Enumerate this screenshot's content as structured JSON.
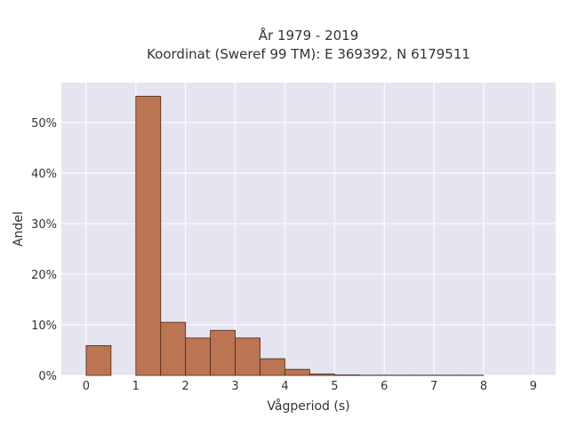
{
  "chart_data": {
    "type": "bar",
    "title_line1": "År 1979 - 2019",
    "title_line2": "Koordinat (Sweref 99 TM): E 369392, N 6179511",
    "xlabel": "Vågperiod (s)",
    "ylabel": "Andel",
    "x_range": [
      -0.5,
      9.45
    ],
    "y_range": [
      0,
      57.9
    ],
    "x_ticks": [
      0,
      1,
      2,
      3,
      4,
      5,
      6,
      7,
      8,
      9
    ],
    "x_tick_labels": [
      "0",
      "1",
      "2",
      "3",
      "4",
      "5",
      "6",
      "7",
      "8",
      "9"
    ],
    "y_ticks": [
      0,
      10,
      20,
      30,
      40,
      50
    ],
    "y_tick_labels": [
      "0%",
      "10%",
      "20%",
      "30%",
      "40%",
      "50%"
    ],
    "bin_width": 0.5,
    "bins": [
      {
        "x0": 0.0,
        "value": 5.9
      },
      {
        "x0": 1.0,
        "value": 55.2
      },
      {
        "x0": 1.5,
        "value": 10.5
      },
      {
        "x0": 2.0,
        "value": 7.4
      },
      {
        "x0": 2.5,
        "value": 8.9
      },
      {
        "x0": 3.0,
        "value": 7.4
      },
      {
        "x0": 3.5,
        "value": 3.3
      },
      {
        "x0": 4.0,
        "value": 1.2
      },
      {
        "x0": 4.5,
        "value": 0.3
      },
      {
        "x0": 5.0,
        "value": 0.1
      },
      {
        "x0": 5.5,
        "value": 0.05
      },
      {
        "x0": 6.0,
        "value": 0.05
      },
      {
        "x0": 6.5,
        "value": 0.05
      },
      {
        "x0": 7.0,
        "value": 0.05
      },
      {
        "x0": 7.5,
        "value": 0.05
      }
    ],
    "grid": true,
    "colors": {
      "bar_fill": "#bc7552",
      "bar_stroke": "#4a2a1a",
      "plot_bg": "#e5e5f0",
      "grid": "#ffffff"
    }
  }
}
